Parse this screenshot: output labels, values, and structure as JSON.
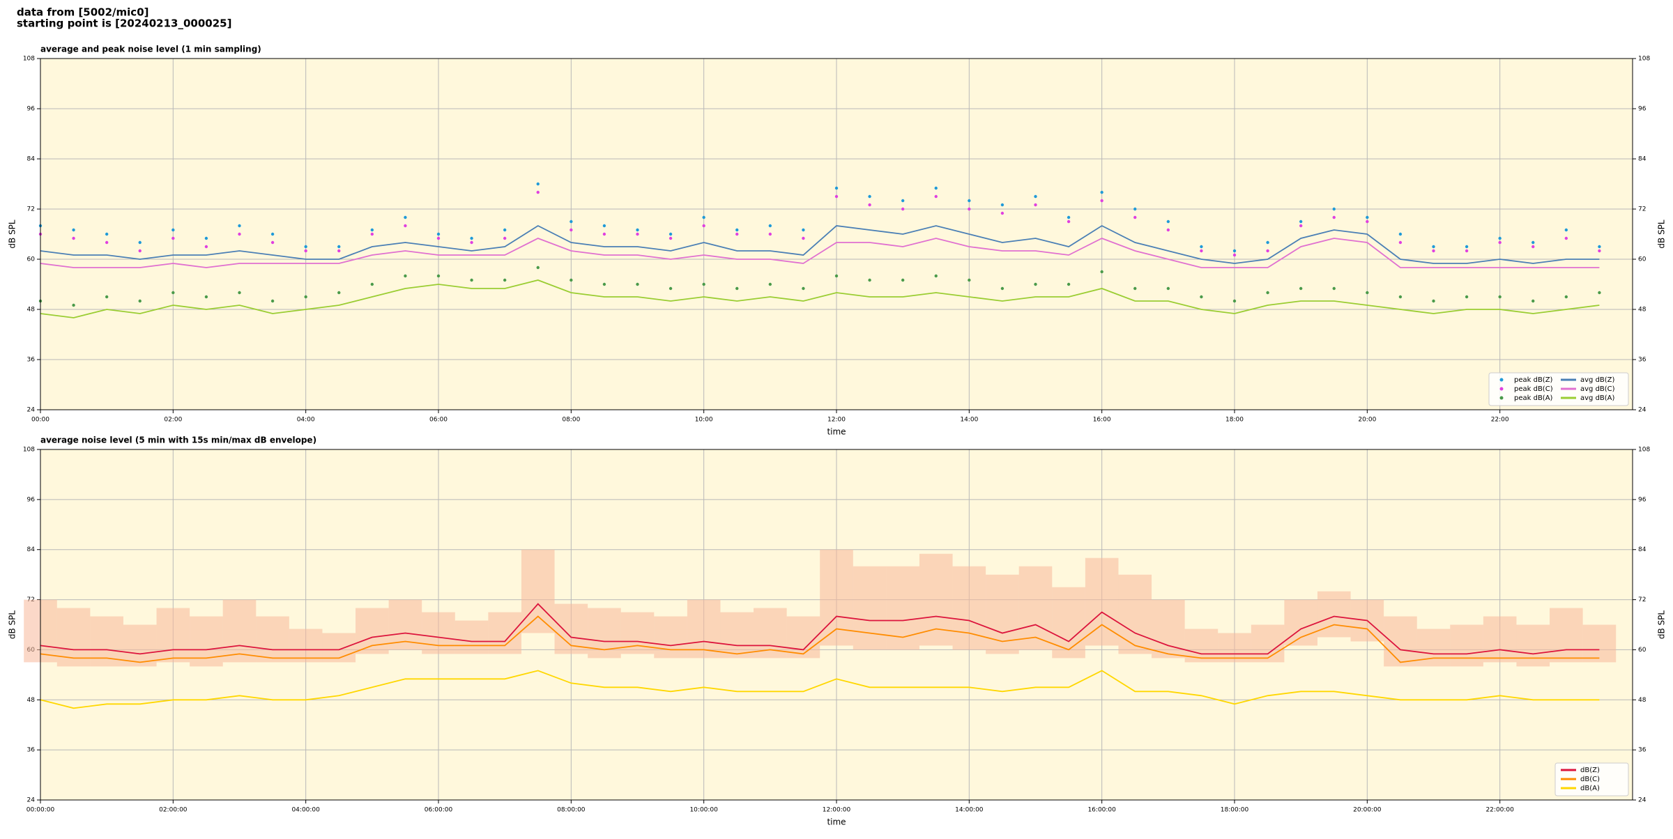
{
  "header": {
    "lines": [
      "data from [5002/mic0]",
      "starting point is [20240213_000025]"
    ]
  },
  "chart_data": [
    {
      "type": "line",
      "title": "average and peak noise level (1 min sampling)",
      "xlabel": "time",
      "ylabel": "dB SPL",
      "background": "#fff8dc",
      "grid": true,
      "right_axis": true,
      "legend": "lower right",
      "legend_columns": 2,
      "xlim": [
        0,
        24
      ],
      "xticks": [
        {
          "value": 0,
          "label": "00:00"
        },
        {
          "value": 2,
          "label": "02:00"
        },
        {
          "value": 4,
          "label": "04:00"
        },
        {
          "value": 6,
          "label": "06:00"
        },
        {
          "value": 8,
          "label": "08:00"
        },
        {
          "value": 10,
          "label": "10:00"
        },
        {
          "value": 12,
          "label": "12:00"
        },
        {
          "value": 14,
          "label": "14:00"
        },
        {
          "value": 16,
          "label": "16:00"
        },
        {
          "value": 18,
          "label": "18:00"
        },
        {
          "value": 20,
          "label": "20:00"
        },
        {
          "value": 22,
          "label": "22:00"
        }
      ],
      "ylim": [
        24,
        108
      ],
      "yticks": [
        24,
        36,
        48,
        60,
        72,
        84,
        96,
        108
      ],
      "x": [
        0,
        0.5,
        1,
        1.5,
        2,
        2.5,
        3,
        3.5,
        4,
        4.5,
        5,
        5.5,
        6,
        6.5,
        7,
        7.5,
        8,
        8.5,
        9,
        9.5,
        10,
        10.5,
        11,
        11.5,
        12,
        12.5,
        13,
        13.5,
        14,
        14.5,
        15,
        15.5,
        16,
        16.5,
        17,
        17.5,
        18,
        18.5,
        19,
        19.5,
        20,
        20.5,
        21,
        21.5,
        22,
        22.5,
        23,
        23.5
      ],
      "series": [
        {
          "name": "peak dB(Z)",
          "style": "markers",
          "color": "#1f9ad8",
          "values": [
            68,
            67,
            66,
            64,
            67,
            65,
            68,
            66,
            63,
            63,
            67,
            70,
            66,
            65,
            67,
            78,
            69,
            68,
            67,
            66,
            70,
            67,
            68,
            67,
            77,
            75,
            74,
            77,
            74,
            73,
            75,
            70,
            76,
            72,
            69,
            63,
            62,
            64,
            69,
            72,
            70,
            66,
            63,
            63,
            65,
            64,
            67,
            63
          ]
        },
        {
          "name": "peak dB(C)",
          "style": "markers",
          "color": "#e040e0",
          "values": [
            66,
            65,
            64,
            62,
            65,
            63,
            66,
            64,
            62,
            62,
            66,
            68,
            65,
            64,
            65,
            76,
            67,
            66,
            66,
            65,
            68,
            66,
            66,
            65,
            75,
            73,
            72,
            75,
            72,
            71,
            73,
            69,
            74,
            70,
            67,
            62,
            61,
            62,
            68,
            70,
            69,
            64,
            62,
            62,
            64,
            63,
            65,
            62
          ]
        },
        {
          "name": "peak dB(A)",
          "style": "markers",
          "color": "#4a9a4a",
          "values": [
            50,
            49,
            51,
            50,
            52,
            51,
            52,
            50,
            51,
            52,
            54,
            56,
            56,
            55,
            55,
            58,
            55,
            54,
            54,
            53,
            54,
            53,
            54,
            53,
            56,
            55,
            55,
            56,
            55,
            53,
            54,
            54,
            57,
            53,
            53,
            51,
            50,
            52,
            53,
            53,
            52,
            51,
            50,
            51,
            51,
            50,
            51,
            52
          ]
        },
        {
          "name": "avg dB(Z)",
          "style": "line",
          "color": "#4a7fb5",
          "values": [
            62,
            61,
            61,
            60,
            61,
            61,
            62,
            61,
            60,
            60,
            63,
            64,
            63,
            62,
            63,
            68,
            64,
            63,
            63,
            62,
            64,
            62,
            62,
            61,
            68,
            67,
            66,
            68,
            66,
            64,
            65,
            63,
            68,
            64,
            62,
            60,
            59,
            60,
            65,
            67,
            66,
            60,
            59,
            59,
            60,
            59,
            60,
            60
          ]
        },
        {
          "name": "avg dB(C)",
          "style": "line",
          "color": "#e070d0",
          "values": [
            59,
            58,
            58,
            58,
            59,
            58,
            59,
            59,
            59,
            59,
            61,
            62,
            61,
            61,
            61,
            65,
            62,
            61,
            61,
            60,
            61,
            60,
            60,
            59,
            64,
            64,
            63,
            65,
            63,
            62,
            62,
            61,
            65,
            62,
            60,
            58,
            58,
            58,
            63,
            65,
            64,
            58,
            58,
            58,
            58,
            58,
            58,
            58
          ]
        },
        {
          "name": "avg dB(A)",
          "style": "line",
          "color": "#9acd32",
          "values": [
            47,
            46,
            48,
            47,
            49,
            48,
            49,
            47,
            48,
            49,
            51,
            53,
            54,
            53,
            53,
            55,
            52,
            51,
            51,
            50,
            51,
            50,
            51,
            50,
            52,
            51,
            51,
            52,
            51,
            50,
            51,
            51,
            53,
            50,
            50,
            48,
            47,
            49,
            50,
            50,
            49,
            48,
            47,
            48,
            48,
            47,
            48,
            49
          ]
        }
      ]
    },
    {
      "type": "line",
      "title": "average noise level (5 min with 15s min/max dB envelope)",
      "xlabel": "time",
      "ylabel": "dB SPL",
      "background": "#fff8dc",
      "grid": true,
      "right_axis": true,
      "legend": "lower right",
      "legend_columns": 1,
      "xlim": [
        0,
        24
      ],
      "xticks": [
        {
          "value": 0,
          "label": "00:00:00"
        },
        {
          "value": 2,
          "label": "02:00:00"
        },
        {
          "value": 4,
          "label": "04:00:00"
        },
        {
          "value": 6,
          "label": "06:00:00"
        },
        {
          "value": 8,
          "label": "08:00:00"
        },
        {
          "value": 10,
          "label": "10:00:00"
        },
        {
          "value": 12,
          "label": "12:00:00"
        },
        {
          "value": 14,
          "label": "14:00:00"
        },
        {
          "value": 16,
          "label": "16:00:00"
        },
        {
          "value": 18,
          "label": "18:00:00"
        },
        {
          "value": 20,
          "label": "20:00:00"
        },
        {
          "value": 22,
          "label": "22:00:00"
        }
      ],
      "ylim": [
        24,
        108
      ],
      "yticks": [
        24,
        36,
        48,
        60,
        72,
        84,
        96,
        108
      ],
      "x": [
        0,
        0.5,
        1,
        1.5,
        2,
        2.5,
        3,
        3.5,
        4,
        4.5,
        5,
        5.5,
        6,
        6.5,
        7,
        7.5,
        8,
        8.5,
        9,
        9.5,
        10,
        10.5,
        11,
        11.5,
        12,
        12.5,
        13,
        13.5,
        14,
        14.5,
        15,
        15.5,
        16,
        16.5,
        17,
        17.5,
        18,
        18.5,
        19,
        19.5,
        20,
        20.5,
        21,
        21.5,
        22,
        22.5,
        23,
        23.5
      ],
      "envelope": {
        "color": "#f7b89a",
        "low": [
          57,
          56,
          56,
          56,
          57,
          56,
          57,
          57,
          57,
          57,
          59,
          60,
          59,
          59,
          59,
          64,
          59,
          58,
          59,
          58,
          58,
          58,
          58,
          58,
          61,
          60,
          60,
          61,
          60,
          59,
          60,
          58,
          61,
          59,
          58,
          57,
          57,
          57,
          61,
          63,
          62,
          56,
          56,
          56,
          57,
          56,
          57,
          57
        ],
        "high": [
          72,
          70,
          68,
          66,
          70,
          68,
          72,
          68,
          65,
          64,
          70,
          72,
          69,
          67,
          69,
          84,
          71,
          70,
          69,
          68,
          72,
          69,
          70,
          68,
          84,
          80,
          80,
          83,
          80,
          78,
          80,
          75,
          82,
          78,
          72,
          65,
          64,
          66,
          72,
          74,
          72,
          68,
          65,
          66,
          68,
          66,
          70,
          66
        ]
      },
      "series": [
        {
          "name": "dB(Z)",
          "style": "line",
          "color": "#dc143c",
          "values": [
            61,
            60,
            60,
            59,
            60,
            60,
            61,
            60,
            60,
            60,
            63,
            64,
            63,
            62,
            62,
            71,
            63,
            62,
            62,
            61,
            62,
            61,
            61,
            60,
            68,
            67,
            67,
            68,
            67,
            64,
            66,
            62,
            69,
            64,
            61,
            59,
            59,
            59,
            65,
            68,
            67,
            60,
            59,
            59,
            60,
            59,
            60,
            60
          ]
        },
        {
          "name": "dB(C)",
          "style": "line",
          "color": "#ff8c00",
          "values": [
            59,
            58,
            58,
            57,
            58,
            58,
            59,
            58,
            58,
            58,
            61,
            62,
            61,
            61,
            61,
            68,
            61,
            60,
            61,
            60,
            60,
            59,
            60,
            59,
            65,
            64,
            63,
            65,
            64,
            62,
            63,
            60,
            66,
            61,
            59,
            58,
            58,
            58,
            63,
            66,
            65,
            57,
            58,
            58,
            58,
            58,
            58,
            58
          ]
        },
        {
          "name": "dB(A)",
          "style": "line",
          "color": "#ffd700",
          "values": [
            48,
            46,
            47,
            47,
            48,
            48,
            49,
            48,
            48,
            49,
            51,
            53,
            53,
            53,
            53,
            55,
            52,
            51,
            51,
            50,
            51,
            50,
            50,
            50,
            53,
            51,
            51,
            51,
            51,
            50,
            51,
            51,
            55,
            50,
            50,
            49,
            47,
            49,
            50,
            50,
            49,
            48,
            48,
            48,
            49,
            48,
            48,
            48
          ]
        }
      ]
    }
  ]
}
